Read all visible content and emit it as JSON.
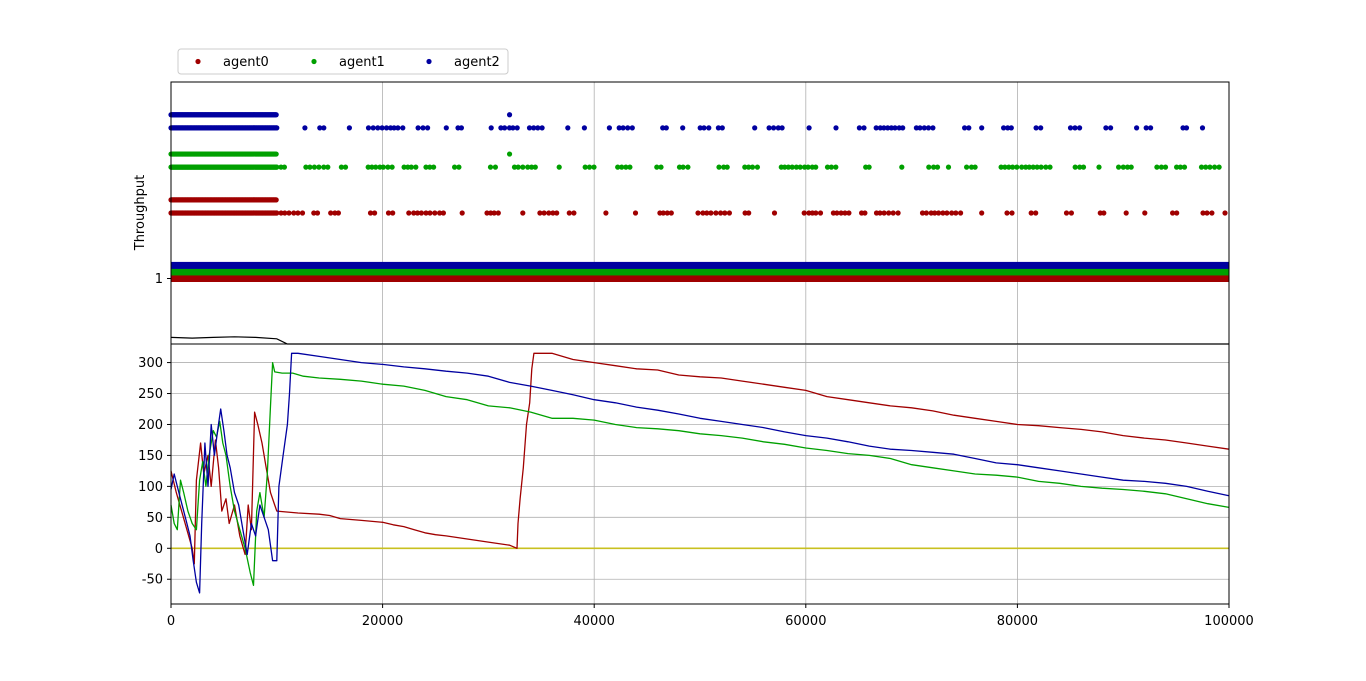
{
  "legend": {
    "position": "top-left",
    "entries": [
      {
        "name": "agent0",
        "color": "#a00000"
      },
      {
        "name": "agent1",
        "color": "#00a000"
      },
      {
        "name": "agent2",
        "color": "#0000a0"
      }
    ]
  },
  "colors": {
    "agent0": "#a00000",
    "agent1": "#00a000",
    "agent2": "#0000a0",
    "zero_line": "#c8c020",
    "grid": "#b0b0b0"
  },
  "chart_data": [
    {
      "type": "scatter",
      "ylabel": "Throughput",
      "yticks": [
        1
      ],
      "ylim": [
        0,
        4
      ],
      "xlim": [
        0,
        100000
      ],
      "xticks": [
        0,
        20000,
        40000,
        60000,
        80000,
        100000
      ],
      "grid": true,
      "series": [
        {
          "name": "agent0",
          "dense": [
            {
              "x_range": [
                0,
                10000
              ],
              "y": 2.0
            },
            {
              "x_range": [
                0,
                10000
              ],
              "y": 2.2
            }
          ],
          "sparse_y": 2.0,
          "sparse_x_range": [
            10000,
            100000
          ],
          "extra_points": [],
          "band_y": 1.0
        },
        {
          "name": "agent1",
          "dense": [
            {
              "x_range": [
                0,
                10000
              ],
              "y": 2.7
            },
            {
              "x_range": [
                0,
                10000
              ],
              "y": 2.9
            }
          ],
          "sparse_y": 2.7,
          "sparse_x_range": [
            10000,
            100000
          ],
          "extra_points": [
            {
              "x": 32000,
              "y": 2.9
            }
          ],
          "band_y": 1.1
        },
        {
          "name": "agent2",
          "dense": [
            {
              "x_range": [
                0,
                10000
              ],
              "y": 3.3
            },
            {
              "x_range": [
                0,
                10000
              ],
              "y": 3.5
            }
          ],
          "sparse_y": 3.3,
          "sparse_x_range": [
            10000,
            100000
          ],
          "extra_points": [
            {
              "x": 32000,
              "y": 3.5
            }
          ],
          "band_y": 1.2
        }
      ],
      "bottom_trace": [
        [
          0,
          0.1
        ],
        [
          2000,
          0.09
        ],
        [
          4000,
          0.1
        ],
        [
          6000,
          0.11
        ],
        [
          8000,
          0.1
        ],
        [
          10000,
          0.08
        ],
        [
          11000,
          0.0
        ],
        [
          100000,
          0.0
        ]
      ]
    },
    {
      "type": "line",
      "xlim": [
        0,
        100000
      ],
      "ylim": [
        -90,
        330
      ],
      "xticks": [
        0,
        20000,
        40000,
        60000,
        80000,
        100000
      ],
      "yticks": [
        -50,
        0,
        50,
        100,
        150,
        200,
        250,
        300
      ],
      "grid": true,
      "zero_line": 0,
      "series": [
        {
          "name": "agent0",
          "points": [
            [
              0,
              125
            ],
            [
              500,
              90
            ],
            [
              1000,
              60
            ],
            [
              1500,
              30
            ],
            [
              2000,
              0
            ],
            [
              2200,
              -25
            ],
            [
              2400,
              110
            ],
            [
              2800,
              170
            ],
            [
              3100,
              120
            ],
            [
              3500,
              150
            ],
            [
              3800,
              100
            ],
            [
              4200,
              175
            ],
            [
              4500,
              130
            ],
            [
              4800,
              60
            ],
            [
              5200,
              80
            ],
            [
              5500,
              40
            ],
            [
              6000,
              70
            ],
            [
              6500,
              20
            ],
            [
              7000,
              -10
            ],
            [
              7300,
              70
            ],
            [
              7600,
              30
            ],
            [
              7900,
              220
            ],
            [
              8200,
              200
            ],
            [
              8600,
              170
            ],
            [
              9000,
              130
            ],
            [
              9400,
              90
            ],
            [
              9800,
              70
            ],
            [
              10000,
              60
            ],
            [
              12000,
              57
            ],
            [
              14000,
              55
            ],
            [
              15000,
              53
            ],
            [
              16000,
              48
            ],
            [
              18000,
              45
            ],
            [
              20000,
              42
            ],
            [
              21000,
              38
            ],
            [
              22000,
              35
            ],
            [
              23000,
              30
            ],
            [
              24000,
              25
            ],
            [
              25000,
              22
            ],
            [
              26000,
              20
            ],
            [
              28000,
              15
            ],
            [
              30000,
              10
            ],
            [
              32000,
              5
            ],
            [
              32700,
              0
            ],
            [
              32800,
              40
            ],
            [
              33000,
              80
            ],
            [
              33300,
              130
            ],
            [
              33600,
              200
            ],
            [
              33900,
              235
            ],
            [
              34100,
              290
            ],
            [
              34300,
              315
            ],
            [
              36000,
              315
            ],
            [
              38000,
              305
            ],
            [
              40000,
              300
            ],
            [
              42000,
              295
            ],
            [
              44000,
              290
            ],
            [
              46000,
              288
            ],
            [
              48000,
              280
            ],
            [
              50000,
              277
            ],
            [
              52000,
              275
            ],
            [
              54000,
              270
            ],
            [
              56000,
              265
            ],
            [
              58000,
              260
            ],
            [
              60000,
              255
            ],
            [
              62000,
              245
            ],
            [
              64000,
              240
            ],
            [
              66000,
              235
            ],
            [
              68000,
              230
            ],
            [
              70000,
              227
            ],
            [
              72000,
              222
            ],
            [
              74000,
              215
            ],
            [
              76000,
              210
            ],
            [
              78000,
              205
            ],
            [
              80000,
              200
            ],
            [
              82000,
              198
            ],
            [
              84000,
              195
            ],
            [
              86000,
              192
            ],
            [
              88000,
              188
            ],
            [
              90000,
              182
            ],
            [
              92000,
              178
            ],
            [
              94000,
              175
            ],
            [
              96000,
              170
            ],
            [
              98000,
              165
            ],
            [
              100000,
              160
            ]
          ]
        },
        {
          "name": "agent1",
          "points": [
            [
              0,
              70
            ],
            [
              300,
              40
            ],
            [
              600,
              30
            ],
            [
              900,
              110
            ],
            [
              1200,
              90
            ],
            [
              1600,
              60
            ],
            [
              2000,
              40
            ],
            [
              2400,
              30
            ],
            [
              2700,
              110
            ],
            [
              3000,
              140
            ],
            [
              3300,
              100
            ],
            [
              3600,
              150
            ],
            [
              4000,
              190
            ],
            [
              4300,
              180
            ],
            [
              4600,
              205
            ],
            [
              4900,
              170
            ],
            [
              5200,
              150
            ],
            [
              5600,
              100
            ],
            [
              6000,
              60
            ],
            [
              6500,
              30
            ],
            [
              7000,
              0
            ],
            [
              7500,
              -40
            ],
            [
              7800,
              -60
            ],
            [
              8100,
              60
            ],
            [
              8400,
              90
            ],
            [
              8800,
              50
            ],
            [
              9100,
              120
            ],
            [
              9400,
              230
            ],
            [
              9600,
              300
            ],
            [
              9800,
              285
            ],
            [
              10500,
              283
            ],
            [
              11500,
              283
            ],
            [
              12500,
              278
            ],
            [
              14000,
              275
            ],
            [
              16000,
              273
            ],
            [
              18000,
              270
            ],
            [
              20000,
              265
            ],
            [
              22000,
              262
            ],
            [
              24000,
              255
            ],
            [
              26000,
              245
            ],
            [
              28000,
              240
            ],
            [
              30000,
              230
            ],
            [
              32000,
              227
            ],
            [
              34000,
              220
            ],
            [
              36000,
              210
            ],
            [
              38000,
              210
            ],
            [
              40000,
              207
            ],
            [
              42000,
              200
            ],
            [
              44000,
              195
            ],
            [
              46000,
              193
            ],
            [
              48000,
              190
            ],
            [
              50000,
              185
            ],
            [
              52000,
              182
            ],
            [
              54000,
              178
            ],
            [
              56000,
              172
            ],
            [
              58000,
              168
            ],
            [
              60000,
              162
            ],
            [
              62000,
              158
            ],
            [
              64000,
              153
            ],
            [
              66000,
              150
            ],
            [
              68000,
              145
            ],
            [
              70000,
              135
            ],
            [
              72000,
              130
            ],
            [
              74000,
              125
            ],
            [
              76000,
              120
            ],
            [
              78000,
              118
            ],
            [
              80000,
              115
            ],
            [
              82000,
              108
            ],
            [
              84000,
              105
            ],
            [
              86000,
              100
            ],
            [
              88000,
              97
            ],
            [
              90000,
              95
            ],
            [
              92000,
              92
            ],
            [
              94000,
              88
            ],
            [
              96000,
              80
            ],
            [
              98000,
              72
            ],
            [
              100000,
              66
            ]
          ]
        },
        {
          "name": "agent2",
          "points": [
            [
              0,
              95
            ],
            [
              300,
              120
            ],
            [
              600,
              100
            ],
            [
              900,
              80
            ],
            [
              1200,
              60
            ],
            [
              1500,
              40
            ],
            [
              1800,
              20
            ],
            [
              2100,
              -20
            ],
            [
              2400,
              -55
            ],
            [
              2700,
              -72
            ],
            [
              2900,
              40
            ],
            [
              3200,
              170
            ],
            [
              3500,
              100
            ],
            [
              3800,
              200
            ],
            [
              4100,
              150
            ],
            [
              4400,
              190
            ],
            [
              4700,
              225
            ],
            [
              5000,
              190
            ],
            [
              5300,
              150
            ],
            [
              5600,
              130
            ],
            [
              6000,
              90
            ],
            [
              6400,
              70
            ],
            [
              6800,
              30
            ],
            [
              7200,
              -10
            ],
            [
              7600,
              40
            ],
            [
              8000,
              20
            ],
            [
              8400,
              70
            ],
            [
              8800,
              50
            ],
            [
              9200,
              30
            ],
            [
              9600,
              -20
            ],
            [
              10000,
              -20
            ],
            [
              10200,
              100
            ],
            [
              10600,
              150
            ],
            [
              11000,
              200
            ],
            [
              11200,
              250
            ],
            [
              11400,
              315
            ],
            [
              12000,
              315
            ],
            [
              14000,
              310
            ],
            [
              16000,
              305
            ],
            [
              18000,
              300
            ],
            [
              20000,
              297
            ],
            [
              22000,
              293
            ],
            [
              24000,
              290
            ],
            [
              26000,
              286
            ],
            [
              28000,
              283
            ],
            [
              30000,
              278
            ],
            [
              32000,
              268
            ],
            [
              34000,
              262
            ],
            [
              36000,
              255
            ],
            [
              38000,
              248
            ],
            [
              40000,
              240
            ],
            [
              42000,
              235
            ],
            [
              44000,
              228
            ],
            [
              46000,
              223
            ],
            [
              48000,
              217
            ],
            [
              50000,
              210
            ],
            [
              52000,
              205
            ],
            [
              54000,
              200
            ],
            [
              56000,
              195
            ],
            [
              58000,
              188
            ],
            [
              60000,
              182
            ],
            [
              62000,
              178
            ],
            [
              64000,
              172
            ],
            [
              66000,
              165
            ],
            [
              68000,
              160
            ],
            [
              70000,
              158
            ],
            [
              72000,
              155
            ],
            [
              74000,
              152
            ],
            [
              76000,
              145
            ],
            [
              78000,
              138
            ],
            [
              80000,
              135
            ],
            [
              82000,
              130
            ],
            [
              84000,
              125
            ],
            [
              86000,
              120
            ],
            [
              88000,
              115
            ],
            [
              90000,
              110
            ],
            [
              92000,
              108
            ],
            [
              94000,
              105
            ],
            [
              96000,
              100
            ],
            [
              98000,
              92
            ],
            [
              100000,
              85
            ]
          ]
        }
      ]
    }
  ]
}
